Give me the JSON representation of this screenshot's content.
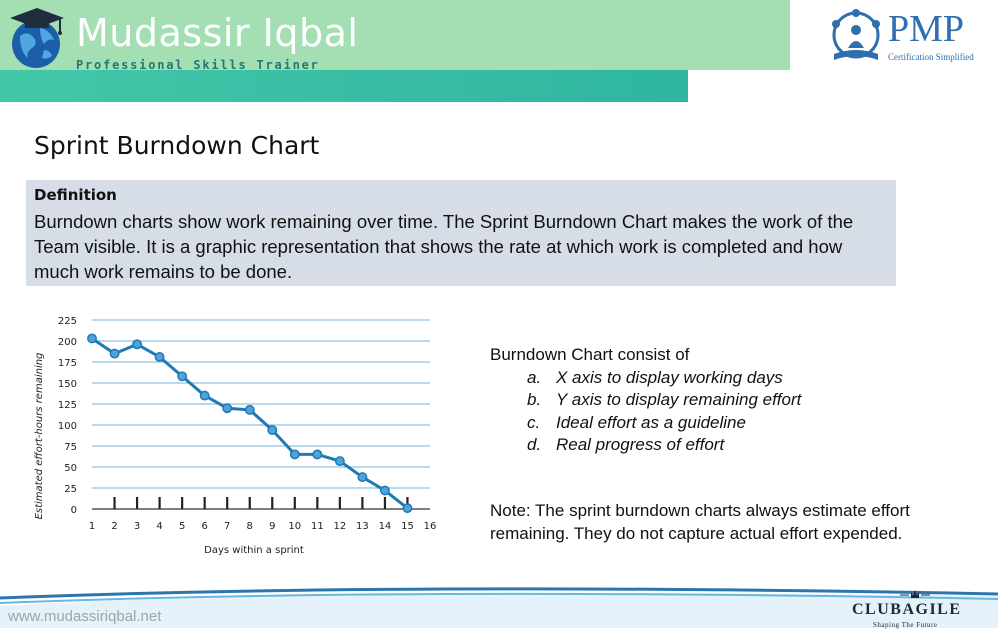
{
  "header": {
    "brand_name": "Mudassir Iqbal",
    "brand_tagline": "Professional Skills Trainer",
    "pmp_title": "PMP",
    "pmp_subtitle": "Certification Simplified"
  },
  "slide": {
    "title": "Sprint Burndown Chart",
    "definition_heading": "Definition",
    "definition_text": "Burndown charts show work remaining over time. The Sprint Burndown Chart makes the work of the Team visible. It is a graphic representation that shows the rate at which work is completed and how much work remains to be done.",
    "consist_heading": "Burndown Chart consist of",
    "consist_items": [
      {
        "marker": "a.",
        "text": "X axis to display working days"
      },
      {
        "marker": "b.",
        "text": "Y axis to display remaining effort"
      },
      {
        "marker": "c.",
        "text": "Ideal effort as a guideline"
      },
      {
        "marker": "d.",
        "text": "Real progress of effort"
      }
    ],
    "note": "Note: The sprint burndown charts always estimate effort remaining. They do not capture actual effort expended."
  },
  "chart_data": {
    "type": "line",
    "xlabel": "Days within a sprint",
    "ylabel": "Estimated effort-hours remaining",
    "x": [
      1,
      2,
      3,
      4,
      5,
      6,
      7,
      8,
      9,
      10,
      11,
      12,
      13,
      14,
      15
    ],
    "x_ticks": [
      1,
      2,
      3,
      4,
      5,
      6,
      7,
      8,
      9,
      10,
      11,
      12,
      13,
      14,
      15,
      16
    ],
    "y_ticks": [
      0,
      25,
      50,
      75,
      100,
      125,
      150,
      175,
      200,
      225
    ],
    "xlim": [
      1,
      16
    ],
    "ylim": [
      0,
      225
    ],
    "series": [
      {
        "values": [
          203,
          185,
          196,
          181,
          158,
          135,
          120,
          118,
          94,
          65,
          65,
          57,
          38,
          22,
          1
        ]
      }
    ],
    "grid": "horizontal",
    "line_color": "#1f79b5",
    "grid_color": "#8cc4e3"
  },
  "footer": {
    "url": "www.mudassiriqbal.net",
    "club_name": "CLUBAGILE",
    "club_tagline": "Shaping The Future"
  }
}
